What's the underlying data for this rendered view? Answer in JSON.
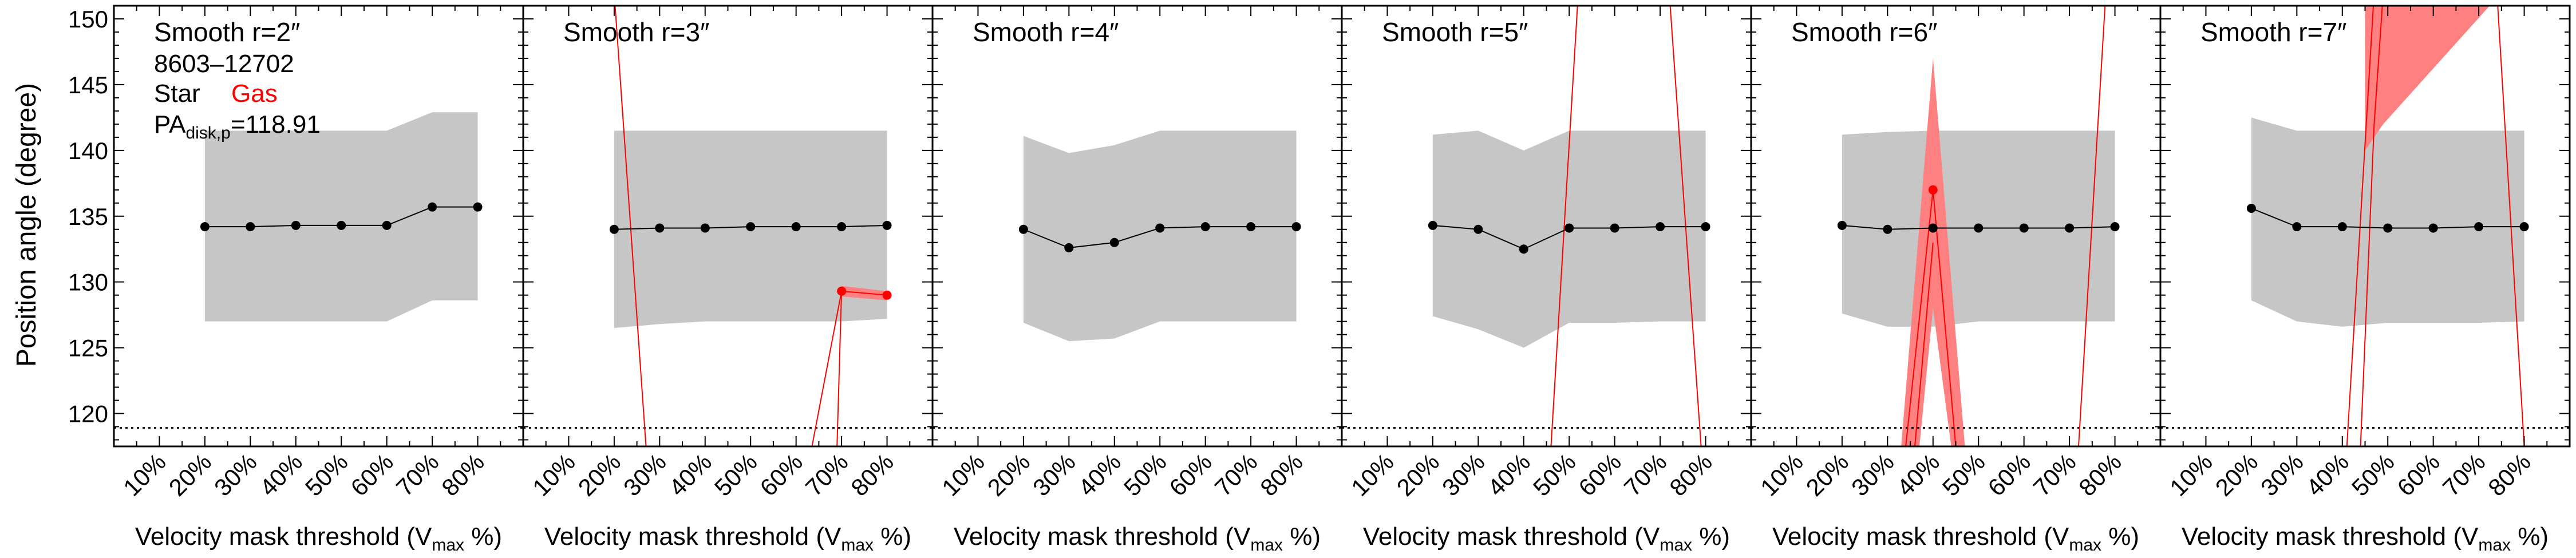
{
  "figure": {
    "ylabel": "Position angle (degree)",
    "xlabel_main": "Velocity mask threshold (V",
    "xlabel_sub": "max",
    "xlabel_tail": " %)",
    "yticks": [
      120,
      125,
      130,
      135,
      140,
      145,
      150
    ],
    "xticks": [
      "10%",
      "20%",
      "30%",
      "40%",
      "50%",
      "60%",
      "70%",
      "80%"
    ],
    "galaxy_id": "8603–12702",
    "legend_star": "Star",
    "legend_gas": "Gas",
    "pa_label_main": "PA",
    "pa_label_sub": "disk,p",
    "pa_label_value": "=118.91",
    "colors": {
      "star": "#000000",
      "star_band": "#c6c6c6",
      "gas": "#ff0000",
      "gas_band": "#ff8080",
      "ref_line": "#000000"
    }
  },
  "chart_data": [
    {
      "type": "line",
      "title": "Smooth r=2″",
      "ylim": [
        117.5,
        151
      ],
      "ref_line_y": 118.91,
      "star": {
        "x": [
          20,
          30,
          40,
          50,
          60,
          70,
          80
        ],
        "y": [
          134.2,
          134.2,
          134.3,
          134.3,
          134.3,
          135.7,
          135.7
        ],
        "lower": [
          127,
          127,
          127,
          127,
          127,
          128.6,
          128.6
        ],
        "upper": [
          141.5,
          141.5,
          141.5,
          141.5,
          141.5,
          142.9,
          142.9
        ]
      },
      "gas_band": [],
      "gas_lines": [],
      "gas_points": []
    },
    {
      "type": "line",
      "title": "Smooth r=3″",
      "ylim": [
        117.5,
        151
      ],
      "ref_line_y": 118.91,
      "star": {
        "x": [
          20,
          30,
          40,
          50,
          60,
          70,
          80
        ],
        "y": [
          134,
          134.1,
          134.1,
          134.2,
          134.2,
          134.2,
          134.3
        ],
        "lower": [
          126.5,
          126.8,
          127,
          127,
          127,
          127,
          127.2
        ],
        "upper": [
          141.5,
          141.5,
          141.5,
          141.5,
          141.5,
          141.5,
          141.5
        ]
      },
      "gas_band": [
        [
          70,
          129.7
        ],
        [
          80,
          129.3
        ],
        [
          80,
          128.6
        ],
        [
          70,
          128.9
        ]
      ],
      "gas_lines": [
        [
          [
            20,
            152
          ],
          [
            27,
            117.5
          ]
        ],
        [
          [
            70,
            129.3
          ],
          [
            80,
            129
          ]
        ],
        [
          [
            70,
            129.3
          ],
          [
            69,
            117.5
          ]
        ],
        [
          [
            70,
            129.3
          ],
          [
            63.5,
            117.5
          ]
        ]
      ],
      "gas_points": [
        [
          70,
          129.3
        ],
        [
          80,
          129
        ]
      ]
    },
    {
      "type": "line",
      "title": "Smooth r=4″",
      "ylim": [
        117.5,
        151
      ],
      "ref_line_y": 118.91,
      "star": {
        "x": [
          20,
          30,
          40,
          50,
          60,
          70,
          80
        ],
        "y": [
          134,
          132.6,
          133,
          134.1,
          134.2,
          134.2,
          134.2
        ],
        "lower": [
          126.9,
          125.5,
          125.7,
          127,
          127,
          127,
          127
        ],
        "upper": [
          141.1,
          139.8,
          140.4,
          141.5,
          141.5,
          141.5,
          141.5
        ]
      },
      "gas_band": [],
      "gas_lines": [],
      "gas_points": []
    },
    {
      "type": "line",
      "title": "Smooth r=5″",
      "ylim": [
        117.5,
        151
      ],
      "ref_line_y": 118.91,
      "star": {
        "x": [
          20,
          30,
          40,
          50,
          60,
          70,
          80
        ],
        "y": [
          134.3,
          134,
          132.5,
          134.1,
          134.1,
          134.2,
          134.2
        ],
        "lower": [
          127.4,
          126.4,
          125,
          126.9,
          126.9,
          127,
          127
        ],
        "upper": [
          141.2,
          141.5,
          140,
          141.5,
          141.5,
          141.5,
          141.5
        ]
      },
      "gas_band": [],
      "gas_lines": [
        [
          [
            46,
            117.5
          ],
          [
            52,
            152
          ]
        ],
        [
          [
            72,
            152
          ],
          [
            79,
            117.5
          ]
        ]
      ],
      "gas_points": []
    },
    {
      "type": "line",
      "title": "Smooth r=6″",
      "ylim": [
        117.5,
        151
      ],
      "ref_line_y": 118.91,
      "star": {
        "x": [
          20,
          30,
          40,
          50,
          60,
          70,
          80
        ],
        "y": [
          134.3,
          134,
          134.1,
          134.1,
          134.1,
          134.1,
          134.2
        ],
        "lower": [
          127.6,
          126.6,
          126.6,
          127,
          127,
          127,
          127
        ],
        "upper": [
          141.2,
          141.4,
          141.5,
          141.5,
          141.5,
          141.5,
          141.5
        ]
      },
      "gas_band": [
        [
          33,
          117.5
        ],
        [
          40,
          147
        ],
        [
          47,
          117.5
        ],
        [
          44,
          117.5
        ],
        [
          40,
          128
        ],
        [
          37,
          117.5
        ]
      ],
      "gas_lines": [
        [
          [
            34,
            117.5
          ],
          [
            40,
            137
          ]
        ],
        [
          [
            40,
            137
          ],
          [
            45,
            117.5
          ]
        ],
        [
          [
            36,
            117.5
          ],
          [
            40,
            133
          ]
        ],
        [
          [
            72,
            117.5
          ],
          [
            78,
            152
          ]
        ]
      ],
      "gas_points": [
        [
          40,
          137
        ]
      ]
    },
    {
      "type": "line",
      "title": "Smooth r=7″",
      "ylim": [
        117.5,
        151
      ],
      "ref_line_y": 118.91,
      "star": {
        "x": [
          20,
          30,
          40,
          50,
          60,
          70,
          80
        ],
        "y": [
          135.6,
          134.2,
          134.2,
          134.1,
          134.1,
          134.2,
          134.2
        ],
        "lower": [
          128.6,
          127,
          126.6,
          126.9,
          126.9,
          126.9,
          127
        ],
        "upper": [
          142.5,
          141.5,
          141.5,
          141.5,
          141.5,
          141.5,
          141.5
        ]
      },
      "gas_band": [
        [
          45,
          152
        ],
        [
          75,
          152
        ],
        [
          49,
          142
        ],
        [
          45,
          140
        ]
      ],
      "gas_lines": [
        [
          [
            41,
            117.5
          ],
          [
            47,
            152
          ]
        ],
        [
          [
            44,
            117.5
          ],
          [
            47,
            142
          ]
        ],
        [
          [
            47,
            142
          ],
          [
            49,
            152
          ]
        ],
        [
          [
            74,
            152
          ],
          [
            80,
            117.5
          ]
        ]
      ],
      "gas_points": []
    }
  ]
}
